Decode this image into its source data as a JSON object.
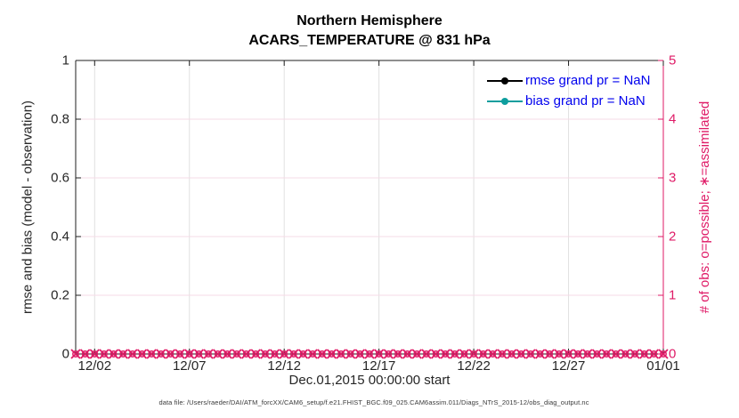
{
  "colors": {
    "axis_left": "#1f1f1f",
    "axis_right": "#DF1A66",
    "grid_vertical": "#E0E0E0",
    "grid_horizontal": "#F6DBE7",
    "legend_text": "#0000EE",
    "tick_label": "#262626",
    "obs_marker": "#DF1A66"
  },
  "figure": {
    "footer": "data file: /Users/raeder/DAI/ATM_forcXX/CAM6_setup/f.e21.FHIST_BGC.f09_025.CAM6assim.011/Diags_NTrS_2015-12/obs_diag_output.nc"
  },
  "chart_data": {
    "type": "line",
    "title": [
      "Northern Hemisphere",
      "ACARS_TEMPERATURE @ 831 hPa"
    ],
    "xlabel": "Dec.01,2015 00:00:00 start",
    "ylabel_left": "rmse and bias (model - observation)",
    "ylabel_right": "# of obs: o=possible; ∗=assimilated",
    "x_tick_labels": [
      "12/02",
      "12/07",
      "12/12",
      "12/17",
      "12/22",
      "12/27",
      "01/01"
    ],
    "x_tick_days": [
      1,
      6,
      11,
      16,
      21,
      26,
      31
    ],
    "x_range_days": [
      0,
      31
    ],
    "left_ytick_labels": [
      "0",
      "0.2",
      "0.4",
      "0.6",
      "0.8",
      "1"
    ],
    "left_ylim": [
      0,
      1
    ],
    "right_ytick_labels": [
      "0",
      "1",
      "2",
      "3",
      "4",
      "5"
    ],
    "right_ylim": [
      0,
      5
    ],
    "grid": true,
    "legend_position": "top-right-inside-no-box",
    "series": [
      {
        "label": "rmse grand pr = NaN",
        "color": "#000000",
        "marker": "filled-circle",
        "values": []
      },
      {
        "label": "bias grand pr = NaN",
        "color": "#0E9E9E",
        "marker": "filled-circle",
        "values": []
      }
    ],
    "obs_counts": {
      "description": "o=possible and x=assimilated observation counts, all bins equal 0 along right axis",
      "possible_value": 0,
      "assimilated_value": 0,
      "bins": 63,
      "bin_spacing_days": 0.5,
      "marker_color": "#DF1A66"
    }
  }
}
